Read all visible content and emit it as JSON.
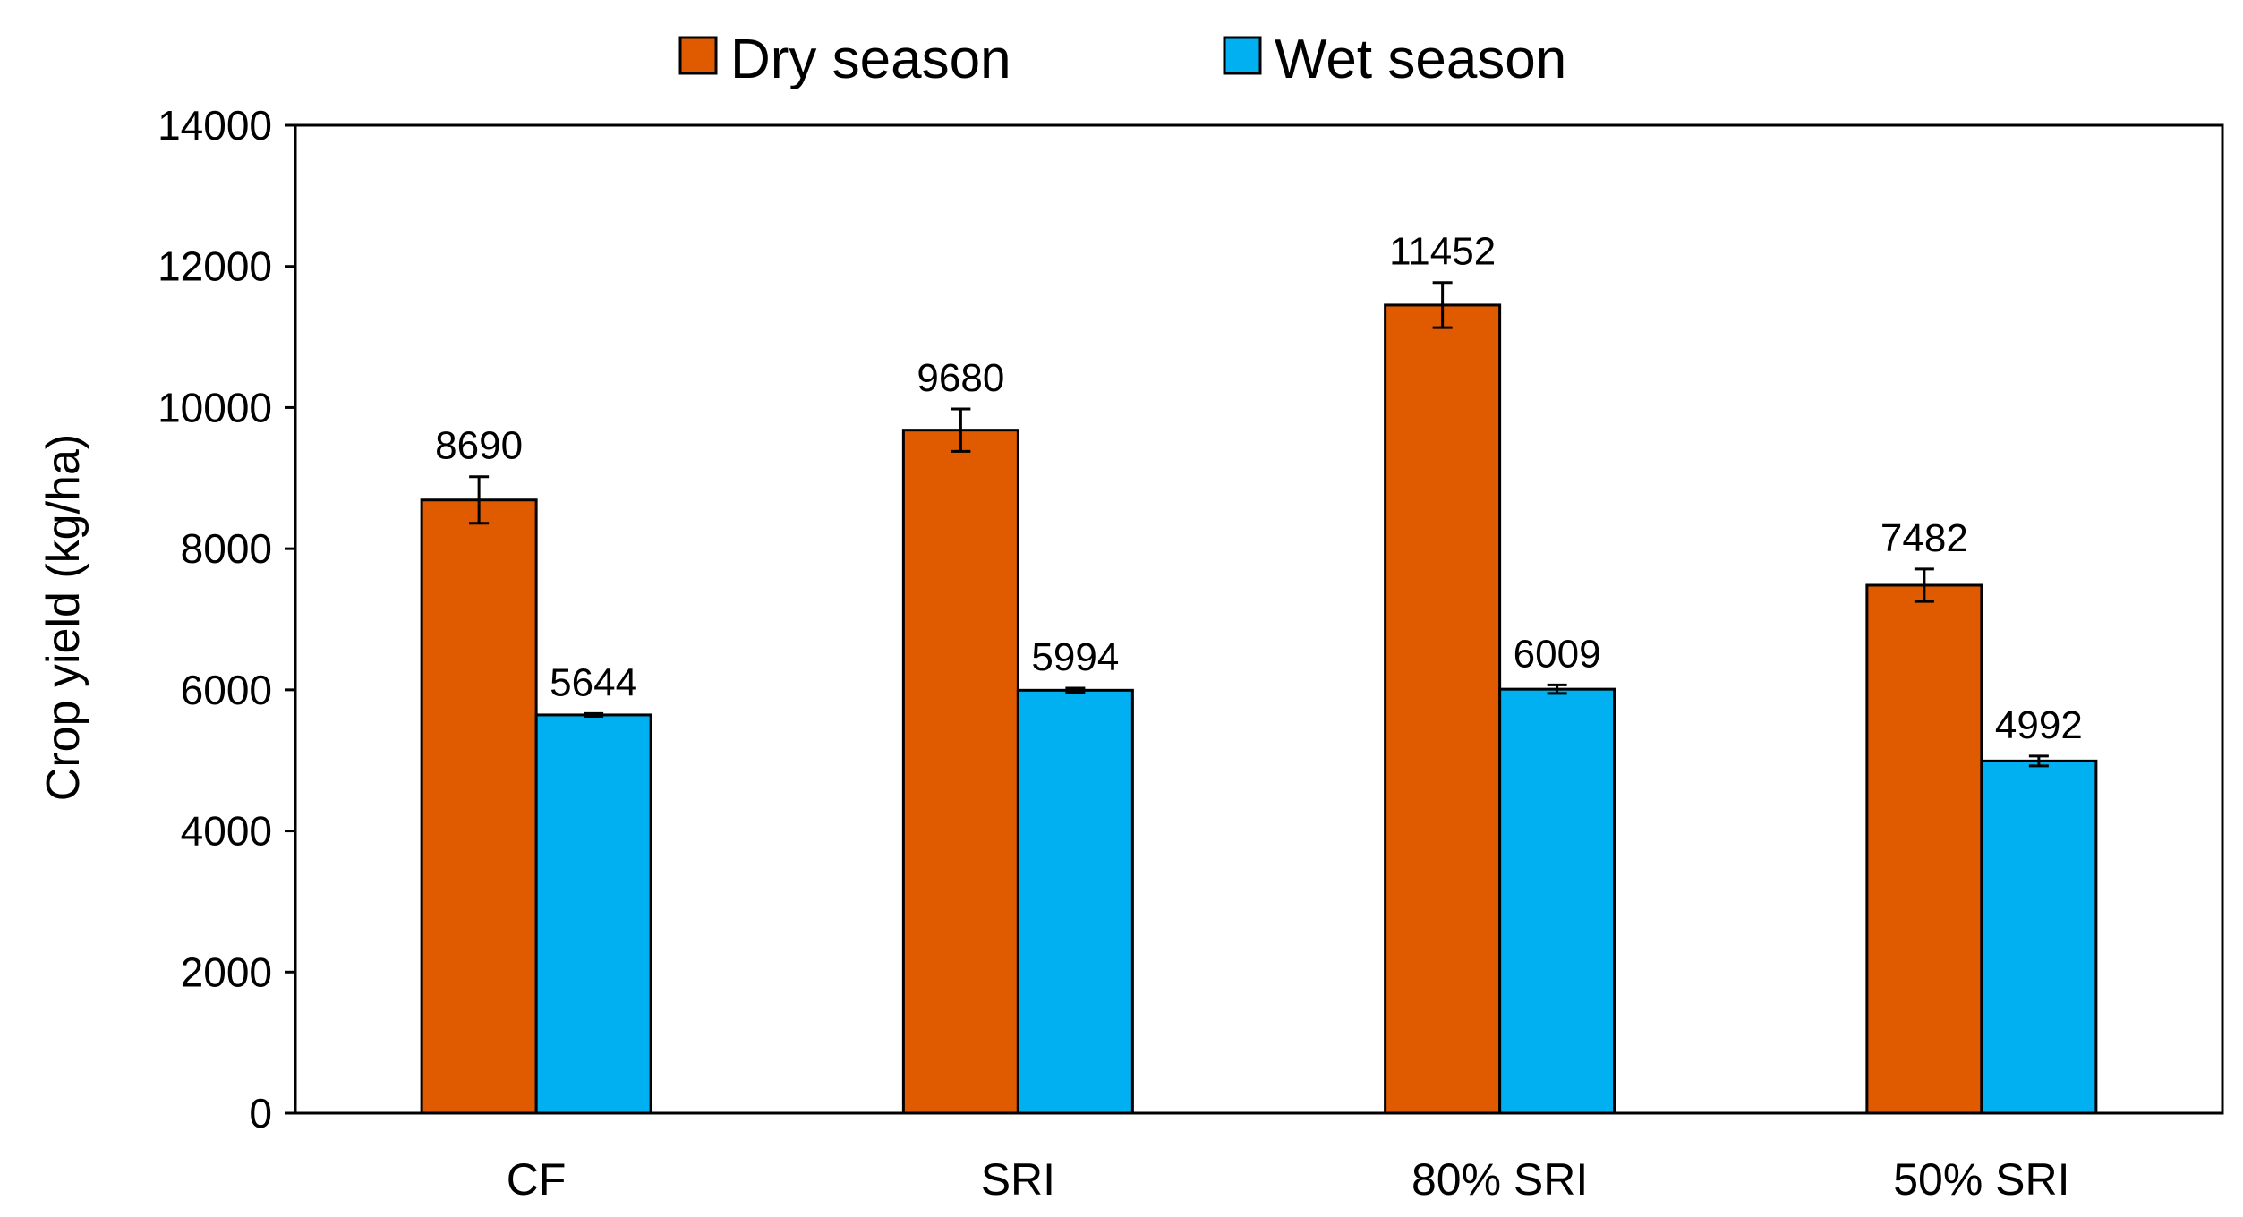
{
  "chart_data": {
    "type": "bar",
    "title": "",
    "xlabel": "",
    "ylabel": "Crop yield (kg/ha)",
    "ylim": [
      0,
      14000
    ],
    "yticks": [
      0,
      2000,
      4000,
      6000,
      8000,
      10000,
      12000,
      14000
    ],
    "ytick_labels": [
      "0",
      "2000",
      "4000",
      "6000",
      "8000",
      "10000",
      "12000",
      "14000"
    ],
    "grid": false,
    "legend_position": "top-center",
    "categories": [
      "CF",
      "SRI",
      "80% SRI",
      "50% SRI"
    ],
    "series": [
      {
        "name": "Dry season",
        "color": "#E05A00",
        "values": [
          8690,
          9680,
          11452,
          7482
        ],
        "errors": [
          330,
          300,
          320,
          230
        ],
        "labels": [
          "8690",
          "9680",
          "11452",
          "7482"
        ]
      },
      {
        "name": "Wet season",
        "color": "#00B0F0",
        "values": [
          5644,
          5994,
          6009,
          4992
        ],
        "errors": [
          20,
          30,
          60,
          70
        ],
        "labels": [
          "5644",
          "5994",
          "6009",
          "4992"
        ]
      }
    ]
  }
}
